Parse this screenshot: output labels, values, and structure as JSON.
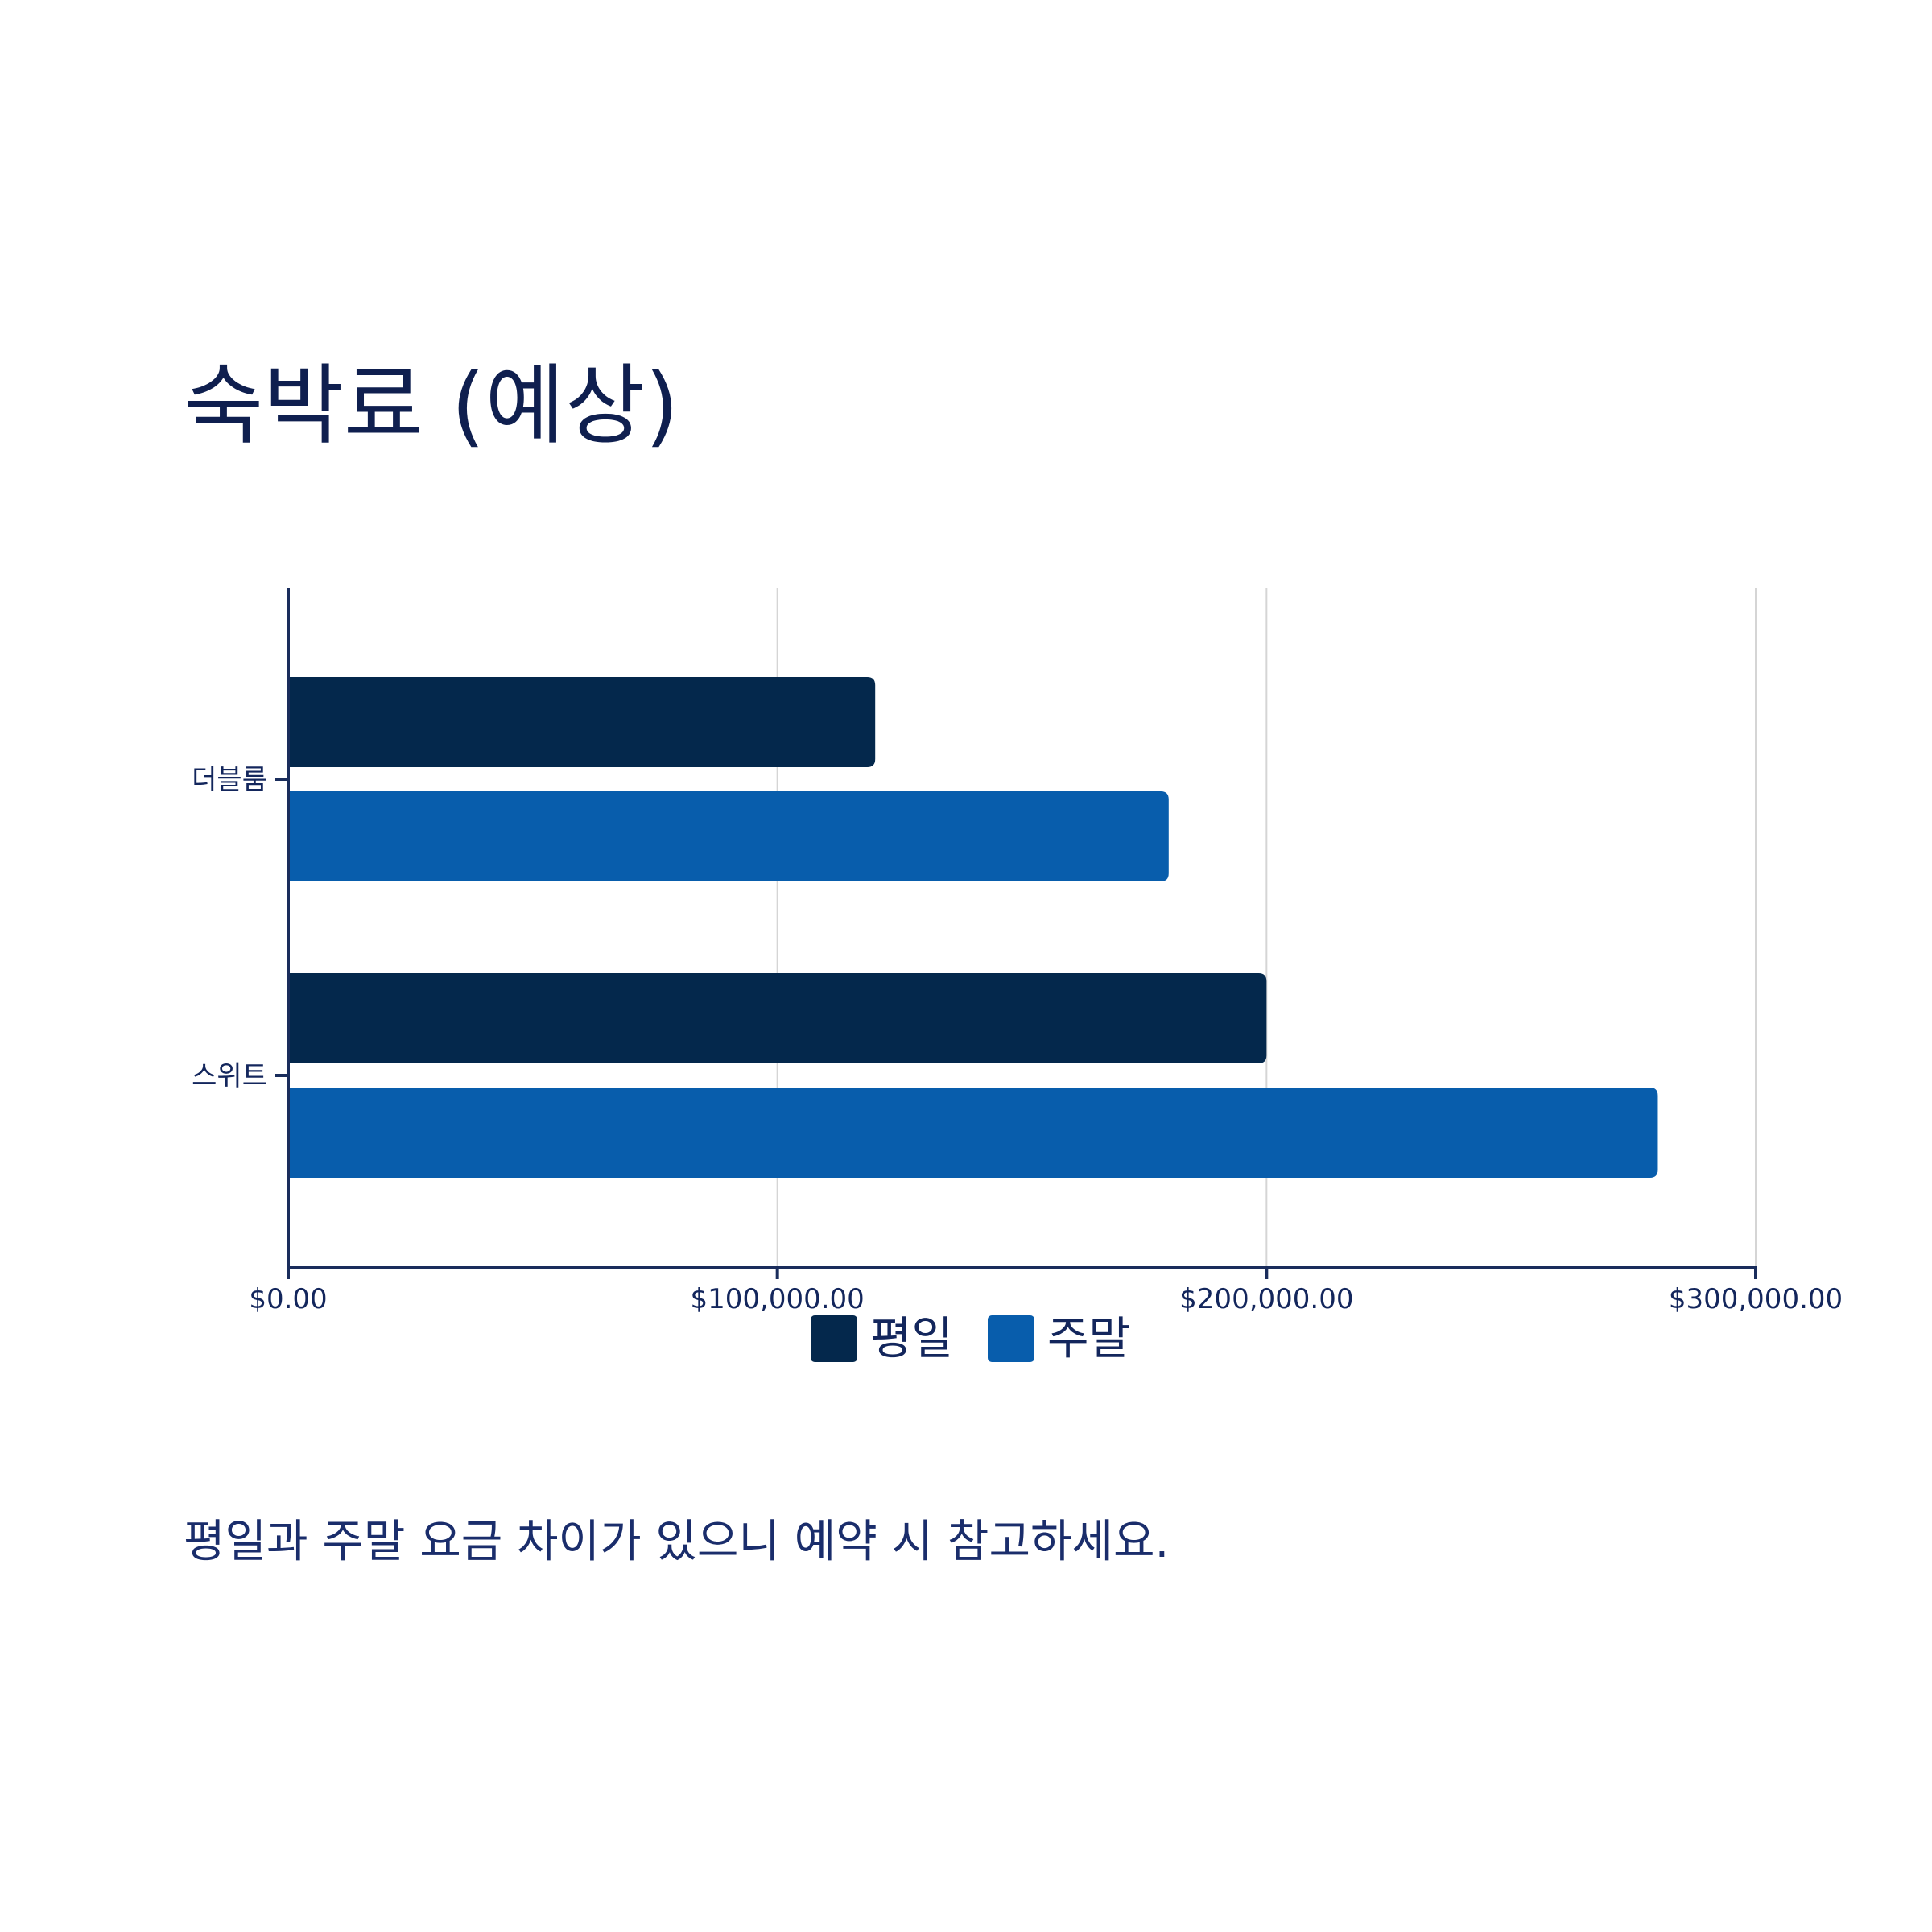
{
  "title": "숙박료 (예상)",
  "note": "평일과 주말 요금 차이가 있으니 예약 시 참고하세요.",
  "colors": {
    "weekday": "#04284c",
    "weekend": "#085dac",
    "axis": "#1a2d5c",
    "grid": "#d5d5d5",
    "text": "#13265c"
  },
  "chart_data": {
    "type": "bar",
    "orientation": "horizontal",
    "title": "숙박료 (예상)",
    "categories": [
      "더블룸",
      "스위트"
    ],
    "series": [
      {
        "name": "평일",
        "values": [
          120000,
          200000
        ]
      },
      {
        "name": "주말",
        "values": [
          180000,
          280000
        ]
      }
    ],
    "xlim": [
      0,
      300000
    ],
    "xticks": [
      0,
      100000,
      200000,
      300000
    ],
    "xtick_labels": [
      "$0.00",
      "$100,000.00",
      "$200,000.00",
      "$300,000.00"
    ],
    "xlabel": "",
    "ylabel": "",
    "grid": "vertical",
    "legend_position": "bottom-center"
  }
}
